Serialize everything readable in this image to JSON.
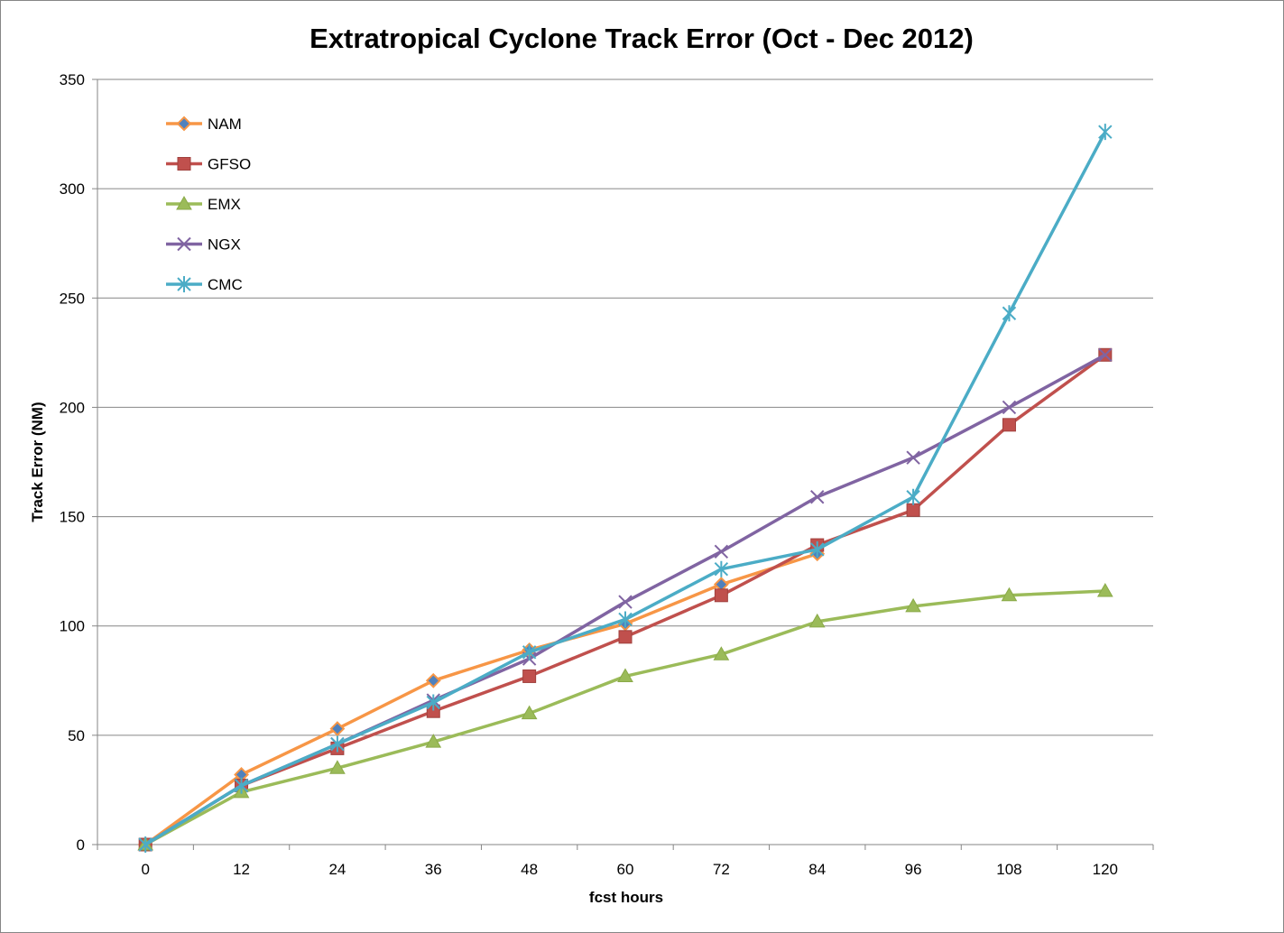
{
  "chart_data": {
    "type": "line",
    "title": "Extratropical Cyclone Track Error (Oct - Dec 2012)",
    "xlabel": "fcst hours",
    "ylabel": "Track Error  (NM)",
    "categories": [
      "0",
      "12",
      "24",
      "36",
      "48",
      "60",
      "72",
      "84",
      "96",
      "108",
      "120"
    ],
    "ylim": [
      0,
      350
    ],
    "yticks": [
      "0",
      "50",
      "100",
      "150",
      "200",
      "250",
      "300",
      "350"
    ],
    "grid": "horizontal",
    "legend_position": "top-left inside",
    "series": [
      {
        "name": "NAM",
        "color": "#F79646",
        "marker": "diamond",
        "marker_color": "#4F81BD",
        "values": [
          0,
          32,
          53,
          75,
          89,
          101,
          119,
          133,
          null,
          null,
          null
        ]
      },
      {
        "name": "GFSO",
        "color": "#C0504D",
        "marker": "square",
        "marker_color": "#C0504D",
        "values": [
          0,
          27,
          44,
          61,
          77,
          95,
          114,
          137,
          153,
          192,
          224
        ]
      },
      {
        "name": "EMX",
        "color": "#9BBB59",
        "marker": "triangle",
        "marker_color": "#9BBB59",
        "values": [
          0,
          24,
          35,
          47,
          60,
          77,
          87,
          102,
          109,
          114,
          116
        ]
      },
      {
        "name": "NGX",
        "color": "#8064A2",
        "marker": "x",
        "marker_color": "#8064A2",
        "values": [
          0,
          27,
          46,
          66,
          85,
          111,
          134,
          159,
          177,
          200,
          224
        ]
      },
      {
        "name": "CMC",
        "color": "#4BACC6",
        "marker": "star",
        "marker_color": "#4BACC6",
        "values": [
          0,
          27,
          46,
          65,
          88,
          103,
          126,
          135,
          159,
          243,
          326
        ]
      }
    ]
  }
}
